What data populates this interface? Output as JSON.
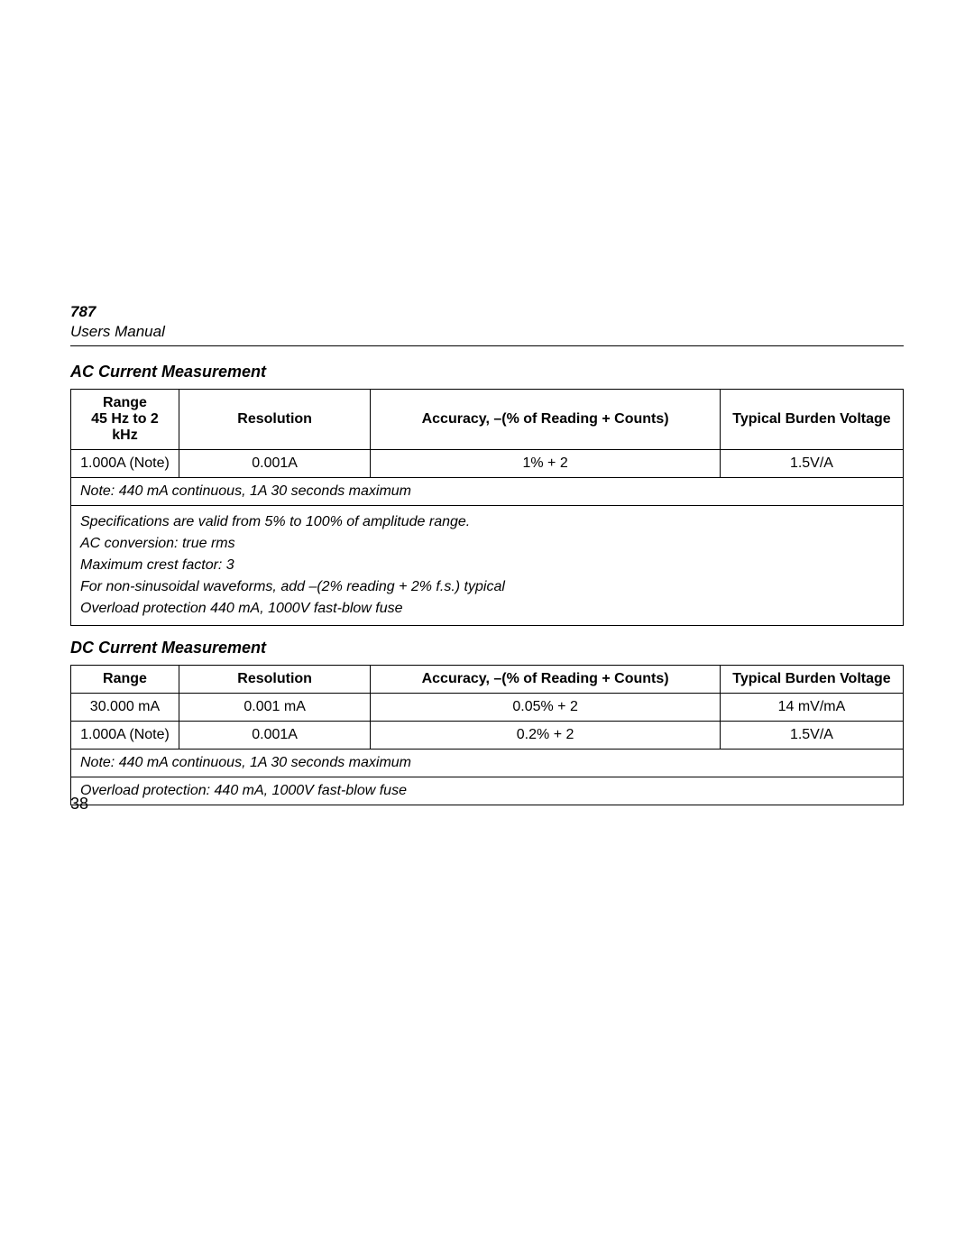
{
  "header": {
    "doc_number": "787",
    "doc_subtitle": "Users Manual"
  },
  "section_ac": {
    "title": "AC Current Measurement",
    "headers": {
      "range": "Range\n45 Hz to 2 kHz",
      "resolution": "Resolution",
      "accuracy": "Accuracy, –(% of Reading + Counts)",
      "burden": "Typical Burden Voltage"
    },
    "row": {
      "range": "1.000A (Note)",
      "resolution": "0.001A",
      "accuracy": "1% + 2",
      "burden": "1.5V/A"
    },
    "note": "Note: 440 mA continuous, 1A 30 seconds maximum",
    "spec_notes": [
      "Specifications are valid from 5% to 100% of amplitude range.",
      "AC conversion: true rms",
      "Maximum crest factor: 3",
      "For non-sinusoidal waveforms, add –(2% reading + 2% f.s.) typical",
      "Overload protection 440 mA, 1000V fast-blow fuse"
    ]
  },
  "section_dc": {
    "title": "DC Current Measurement",
    "headers": {
      "range": "Range",
      "resolution": "Resolution",
      "accuracy": "Accuracy, –(% of Reading + Counts)",
      "burden": "Typical Burden Voltage"
    },
    "rows": [
      {
        "range": "30.000 mA",
        "resolution": "0.001 mA",
        "accuracy": "0.05% + 2",
        "burden": "14 mV/mA"
      },
      {
        "range": "1.000A (Note)",
        "resolution": "0.001A",
        "accuracy": "0.2% + 2",
        "burden": "1.5V/A"
      }
    ],
    "note": "Note: 440 mA continuous, 1A 30 seconds maximum",
    "overload": "Overload protection: 440 mA, 1000V fast-blow fuse"
  },
  "page_number": "38"
}
